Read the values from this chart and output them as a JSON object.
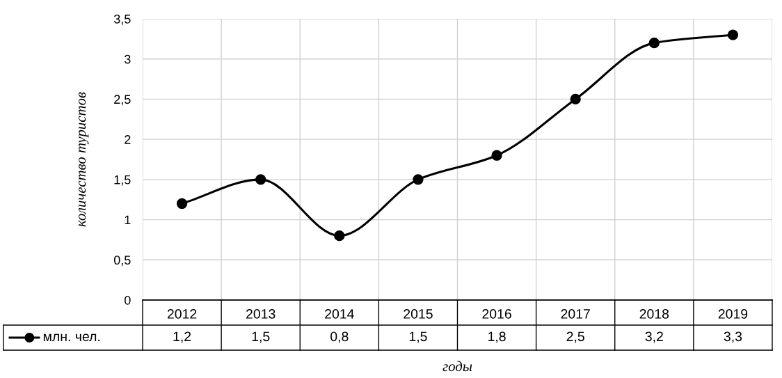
{
  "chart_data": {
    "type": "line",
    "xlabel": "годы",
    "ylabel": "количество туристов",
    "categories": [
      "2012",
      "2013",
      "2014",
      "2015",
      "2016",
      "2017",
      "2018",
      "2019"
    ],
    "series": [
      {
        "name": "млн. чел.",
        "color": "#000000",
        "values": [
          1.2,
          1.5,
          0.8,
          1.5,
          1.8,
          2.5,
          3.2,
          3.3
        ],
        "value_labels": [
          "1,2",
          "1,5",
          "0,8",
          "1,5",
          "1,8",
          "2,5",
          "3,2",
          "3,3"
        ]
      }
    ],
    "ylim": [
      0,
      3.5
    ],
    "yticks": [
      0,
      {
        "value": 0.5,
        "label": "0,5"
      },
      1,
      {
        "value": 1.5,
        "label": "1,5"
      },
      2,
      {
        "value": 2.5,
        "label": "2,5"
      },
      3,
      {
        "value": 3.5,
        "label": "3,5"
      }
    ],
    "grid": true,
    "marker": "circle",
    "line_style": "solid"
  }
}
